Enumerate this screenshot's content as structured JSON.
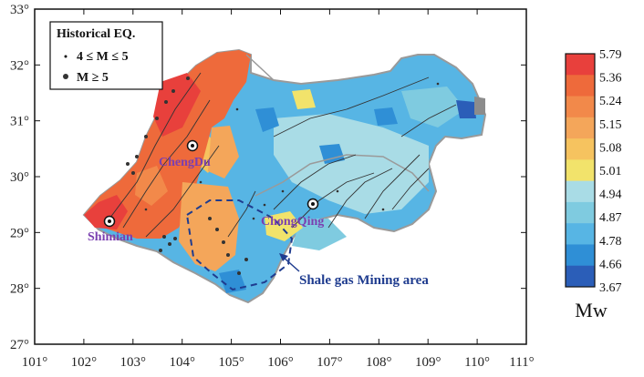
{
  "legend": {
    "title": "Historical EQ.",
    "small_label": "4 ≤ M ≤ 5",
    "large_label": "M ≥ 5"
  },
  "axes": {
    "x_ticks": [
      "101°",
      "102°",
      "103°",
      "104°",
      "105°",
      "106°",
      "107°",
      "108°",
      "109°",
      "110°",
      "111°"
    ],
    "y_ticks": [
      "33°",
      "32°",
      "31°",
      "30°",
      "29°",
      "28°",
      "27°"
    ]
  },
  "cities": [
    {
      "name": "ChengDu",
      "lon": 104.07,
      "lat": 30.58
    },
    {
      "name": "ChongQing",
      "lon": 106.55,
      "lat": 29.56
    },
    {
      "name": "Shimian",
      "lon": 102.36,
      "lat": 29.23
    }
  ],
  "annotation": {
    "mining_label": "Shale gas Mining area"
  },
  "colorbar": {
    "unit": "Mw",
    "labels": [
      "5.79",
      "5.36",
      "5.24",
      "5.15",
      "5.08",
      "5.01",
      "4.94",
      "4.87",
      "4.78",
      "4.66",
      "3.67"
    ],
    "colors": [
      "#e8403c",
      "#ee6a3b",
      "#f2894a",
      "#f4a65a",
      "#f6c35f",
      "#f2e36b",
      "#a9dce6",
      "#7fcbe0",
      "#57b5e4",
      "#2f8fd6",
      "#2b5eb8"
    ]
  },
  "colors": {
    "frame": "#111111",
    "boundary": "#9a9a9a",
    "fault": "#333333"
  }
}
